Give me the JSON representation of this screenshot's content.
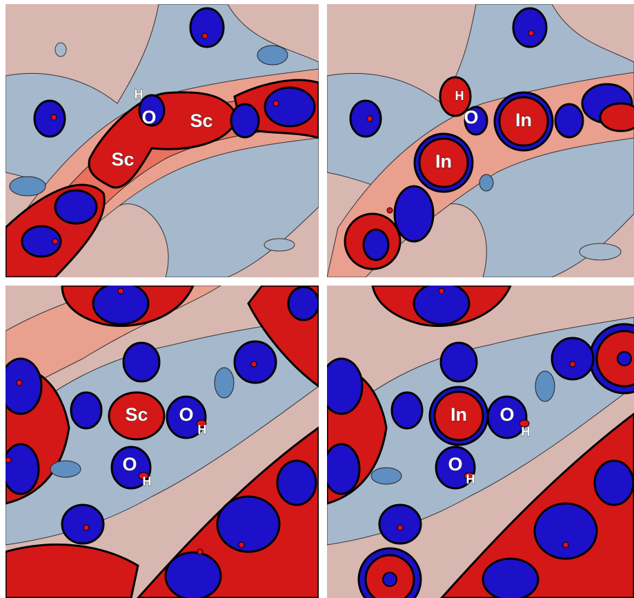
{
  "panels": [
    {
      "labels": [
        "H",
        "O",
        "Sc",
        "Sc"
      ]
    },
    {
      "labels": [
        "H",
        "O",
        "In",
        "In"
      ]
    },
    {
      "labels": [
        "Sc",
        "O",
        "H",
        "O",
        "H"
      ]
    },
    {
      "labels": [
        "In",
        "O",
        "H",
        "O",
        "H"
      ]
    }
  ]
}
